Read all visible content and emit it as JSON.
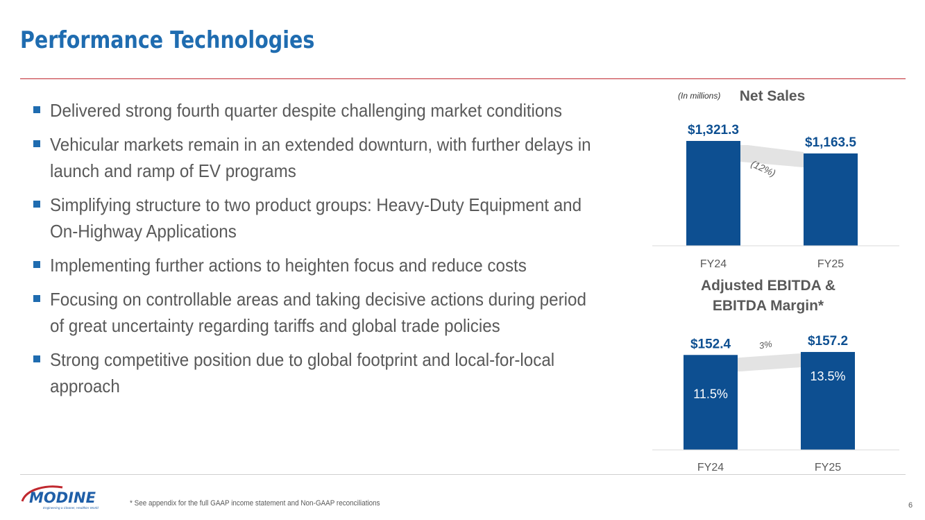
{
  "slide": {
    "title": "Performance Technologies",
    "bullets": [
      "Delivered strong fourth quarter despite challenging market conditions",
      "Vehicular markets remain in an extended downturn, with further delays in launch and ramp of EV programs",
      "Simplifying structure to two product groups: Heavy-Duty Equipment and On-Highway Applications",
      "Implementing further actions to heighten focus and reduce costs",
      "Focusing on controllable areas and taking decisive actions during period of great uncertainty regarding tariffs and global trade policies",
      "Strong competitive position due to global footprint and local-for-local approach"
    ],
    "footnote": "* See appendix for the full GAAP income statement and Non-GAAP reconciliations",
    "page_number": "6",
    "logo": {
      "name": "MODINE",
      "tagline": "Engineering a Cleaner, Healthier World"
    }
  },
  "colors": {
    "title": "#1f6cb0",
    "bar": "#0d4f91",
    "rule": "#c0282e",
    "bullet": "#1f6cb0",
    "arrow": "#e3e3e3"
  },
  "chart_data": [
    {
      "type": "bar",
      "title": "Net Sales",
      "units_note": "(In millions)",
      "categories": [
        "FY24",
        "FY25"
      ],
      "values": [
        1321.3,
        1163.5
      ],
      "value_labels": [
        "$1,321.3",
        "$1,163.5"
      ],
      "change_label": "(12%)",
      "ylim": [
        0,
        1400
      ]
    },
    {
      "type": "bar",
      "title": "Adjusted EBITDA & EBITDA Margin*",
      "title_lines": [
        "Adjusted EBITDA &",
        "EBITDA Margin*"
      ],
      "categories": [
        "FY24",
        "FY25"
      ],
      "values": [
        152.4,
        157.2
      ],
      "value_labels": [
        "$152.4",
        "$157.2"
      ],
      "margins": [
        "11.5%",
        "13.5%"
      ],
      "change_label": "3%",
      "ylim": [
        0,
        175
      ]
    }
  ]
}
